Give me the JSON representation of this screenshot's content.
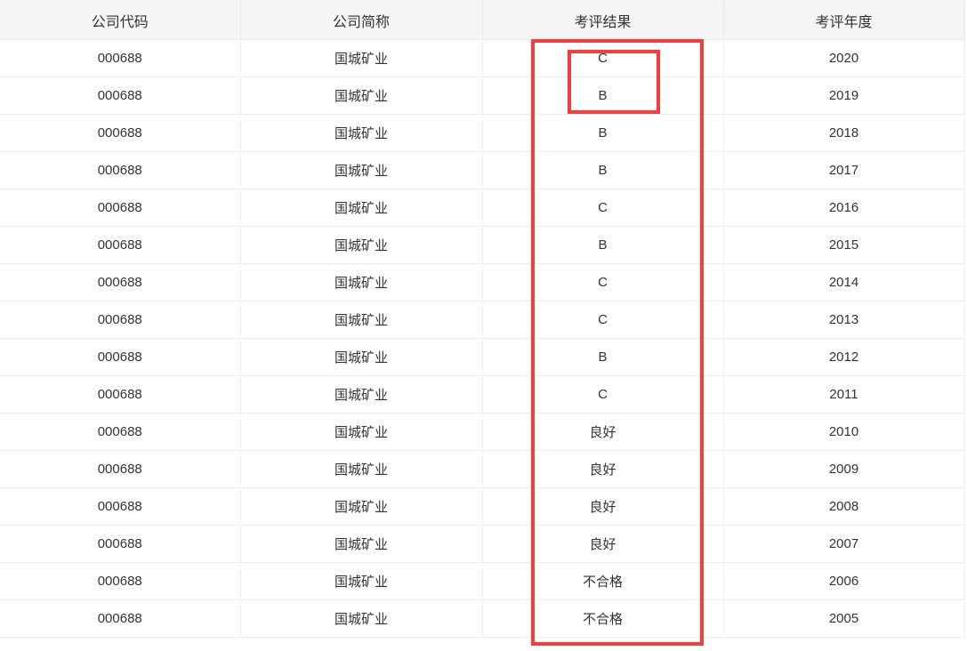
{
  "table": {
    "headers": [
      "公司代码",
      "公司简称",
      "考评结果",
      "考评年度"
    ],
    "rows": [
      {
        "code": "000688",
        "name": "国城矿业",
        "result": "C",
        "year": "2020"
      },
      {
        "code": "000688",
        "name": "国城矿业",
        "result": "B",
        "year": "2019"
      },
      {
        "code": "000688",
        "name": "国城矿业",
        "result": "B",
        "year": "2018"
      },
      {
        "code": "000688",
        "name": "国城矿业",
        "result": "B",
        "year": "2017"
      },
      {
        "code": "000688",
        "name": "国城矿业",
        "result": "C",
        "year": "2016"
      },
      {
        "code": "000688",
        "name": "国城矿业",
        "result": "B",
        "year": "2015"
      },
      {
        "code": "000688",
        "name": "国城矿业",
        "result": "C",
        "year": "2014"
      },
      {
        "code": "000688",
        "name": "国城矿业",
        "result": "C",
        "year": "2013"
      },
      {
        "code": "000688",
        "name": "国城矿业",
        "result": "B",
        "year": "2012"
      },
      {
        "code": "000688",
        "name": "国城矿业",
        "result": "C",
        "year": "2011"
      },
      {
        "code": "000688",
        "name": "国城矿业",
        "result": "良好",
        "year": "2010"
      },
      {
        "code": "000688",
        "name": "国城矿业",
        "result": "良好",
        "year": "2009"
      },
      {
        "code": "000688",
        "name": "国城矿业",
        "result": "良好",
        "year": "2008"
      },
      {
        "code": "000688",
        "name": "国城矿业",
        "result": "良好",
        "year": "2007"
      },
      {
        "code": "000688",
        "name": "国城矿业",
        "result": "不合格",
        "year": "2006"
      },
      {
        "code": "000688",
        "name": "国城矿业",
        "result": "不合格",
        "year": "2005"
      }
    ]
  },
  "annotations": {
    "highlight_color": "#f83b3b"
  },
  "colors": {
    "header_background": "#f5f5f5",
    "row_border": "#ededed",
    "text": "#333333"
  }
}
